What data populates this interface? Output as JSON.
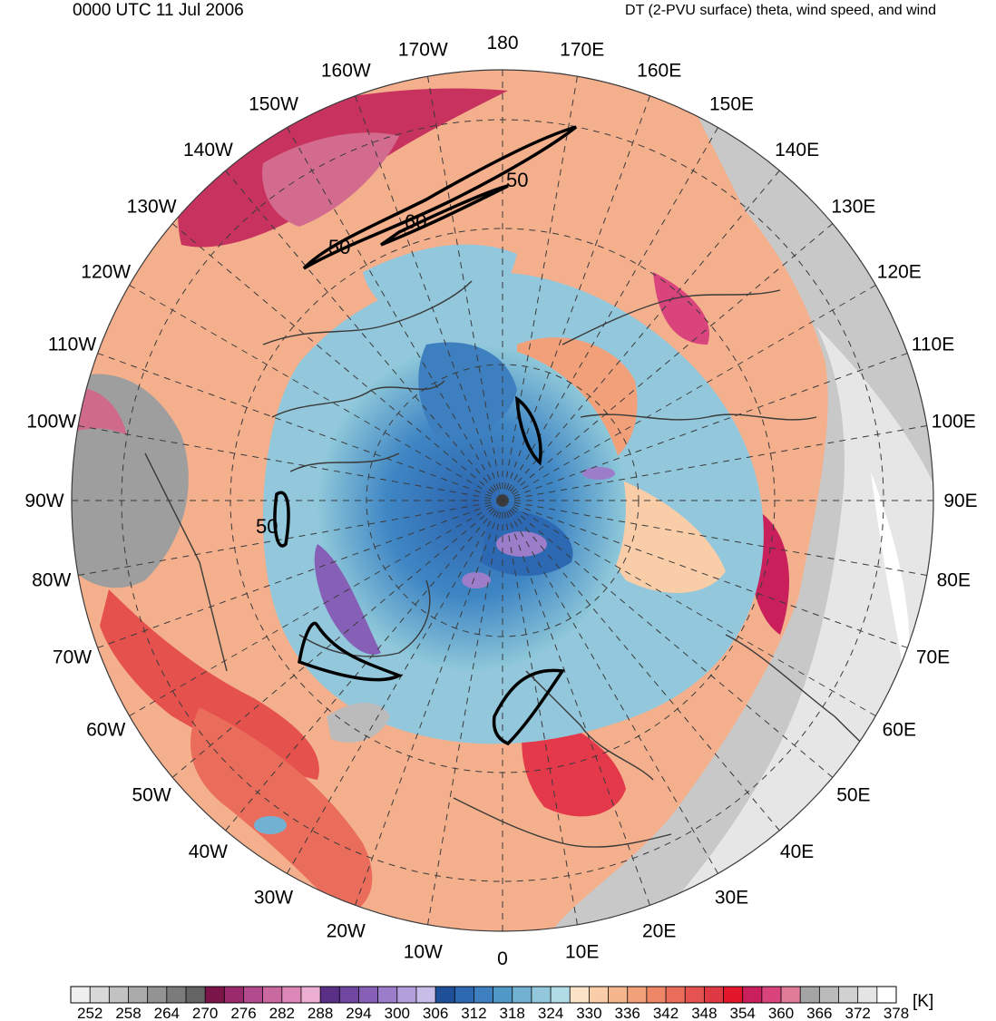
{
  "header": {
    "datetime": "0000 UTC 11 Jul 2006",
    "product": "DT (2-PVU surface) theta, wind speed, and wind"
  },
  "map": {
    "projection": "north-polar-stereographic",
    "colors": {
      "cold_core": "#2f6fb8",
      "cool": "#8cc9da",
      "warm": "#f6b48e",
      "hot": "#e8423b",
      "very_hot": "#c92f5f",
      "outer_gray": "#a9a9a9",
      "coast": "#3a3a3a"
    },
    "meridian_labels": [
      "180",
      "170E",
      "160E",
      "150E",
      "140E",
      "130E",
      "120E",
      "110E",
      "100E",
      "90E",
      "80E",
      "70E",
      "60E",
      "50E",
      "40E",
      "30E",
      "20E",
      "10E",
      "0",
      "10W",
      "20W",
      "30W",
      "40W",
      "50W",
      "60W",
      "70W",
      "80W",
      "90W",
      "100W",
      "110W",
      "120W",
      "130W",
      "140W",
      "150W",
      "160W",
      "170W"
    ],
    "jet_contour_labels": [
      {
        "text": "50",
        "where": "north-pacific-north"
      },
      {
        "text": "60",
        "where": "north-pacific-core"
      },
      {
        "text": "50",
        "where": "north-pacific-south"
      },
      {
        "text": "50",
        "where": "hudson-bay"
      }
    ]
  },
  "colorbar": {
    "unit": "[K]",
    "tick_labels": [
      "252",
      "258",
      "264",
      "270",
      "276",
      "282",
      "288",
      "294",
      "300",
      "306",
      "312",
      "318",
      "324",
      "330",
      "336",
      "342",
      "348",
      "354",
      "360",
      "366",
      "372",
      "378"
    ],
    "colors": [
      "#f0f0f0",
      "#d8d8d8",
      "#c2c2c2",
      "#aaaaaa",
      "#939393",
      "#7b7b7b",
      "#646464",
      "#7b1448",
      "#9a2a6c",
      "#b24a8e",
      "#c9699f",
      "#dd87b8",
      "#ecaed3",
      "#5a2f86",
      "#6f47a0",
      "#8560b6",
      "#9b7dca",
      "#b39fdc",
      "#c8bce8",
      "#1f4f98",
      "#2d68b2",
      "#3e7fbf",
      "#4f98c8",
      "#73b1d3",
      "#92c7dc",
      "#b1dce6",
      "#fce3c8",
      "#f8cda8",
      "#f5b68e",
      "#f2a07a",
      "#ee8768",
      "#ea6d5c",
      "#e4534f",
      "#df3a43",
      "#e4162b",
      "#c9205c",
      "#d9447c",
      "#e07c98",
      "#a4a4a4",
      "#bbbbbb",
      "#d1d1d1",
      "#e5e5e5",
      "#ffffff"
    ]
  }
}
